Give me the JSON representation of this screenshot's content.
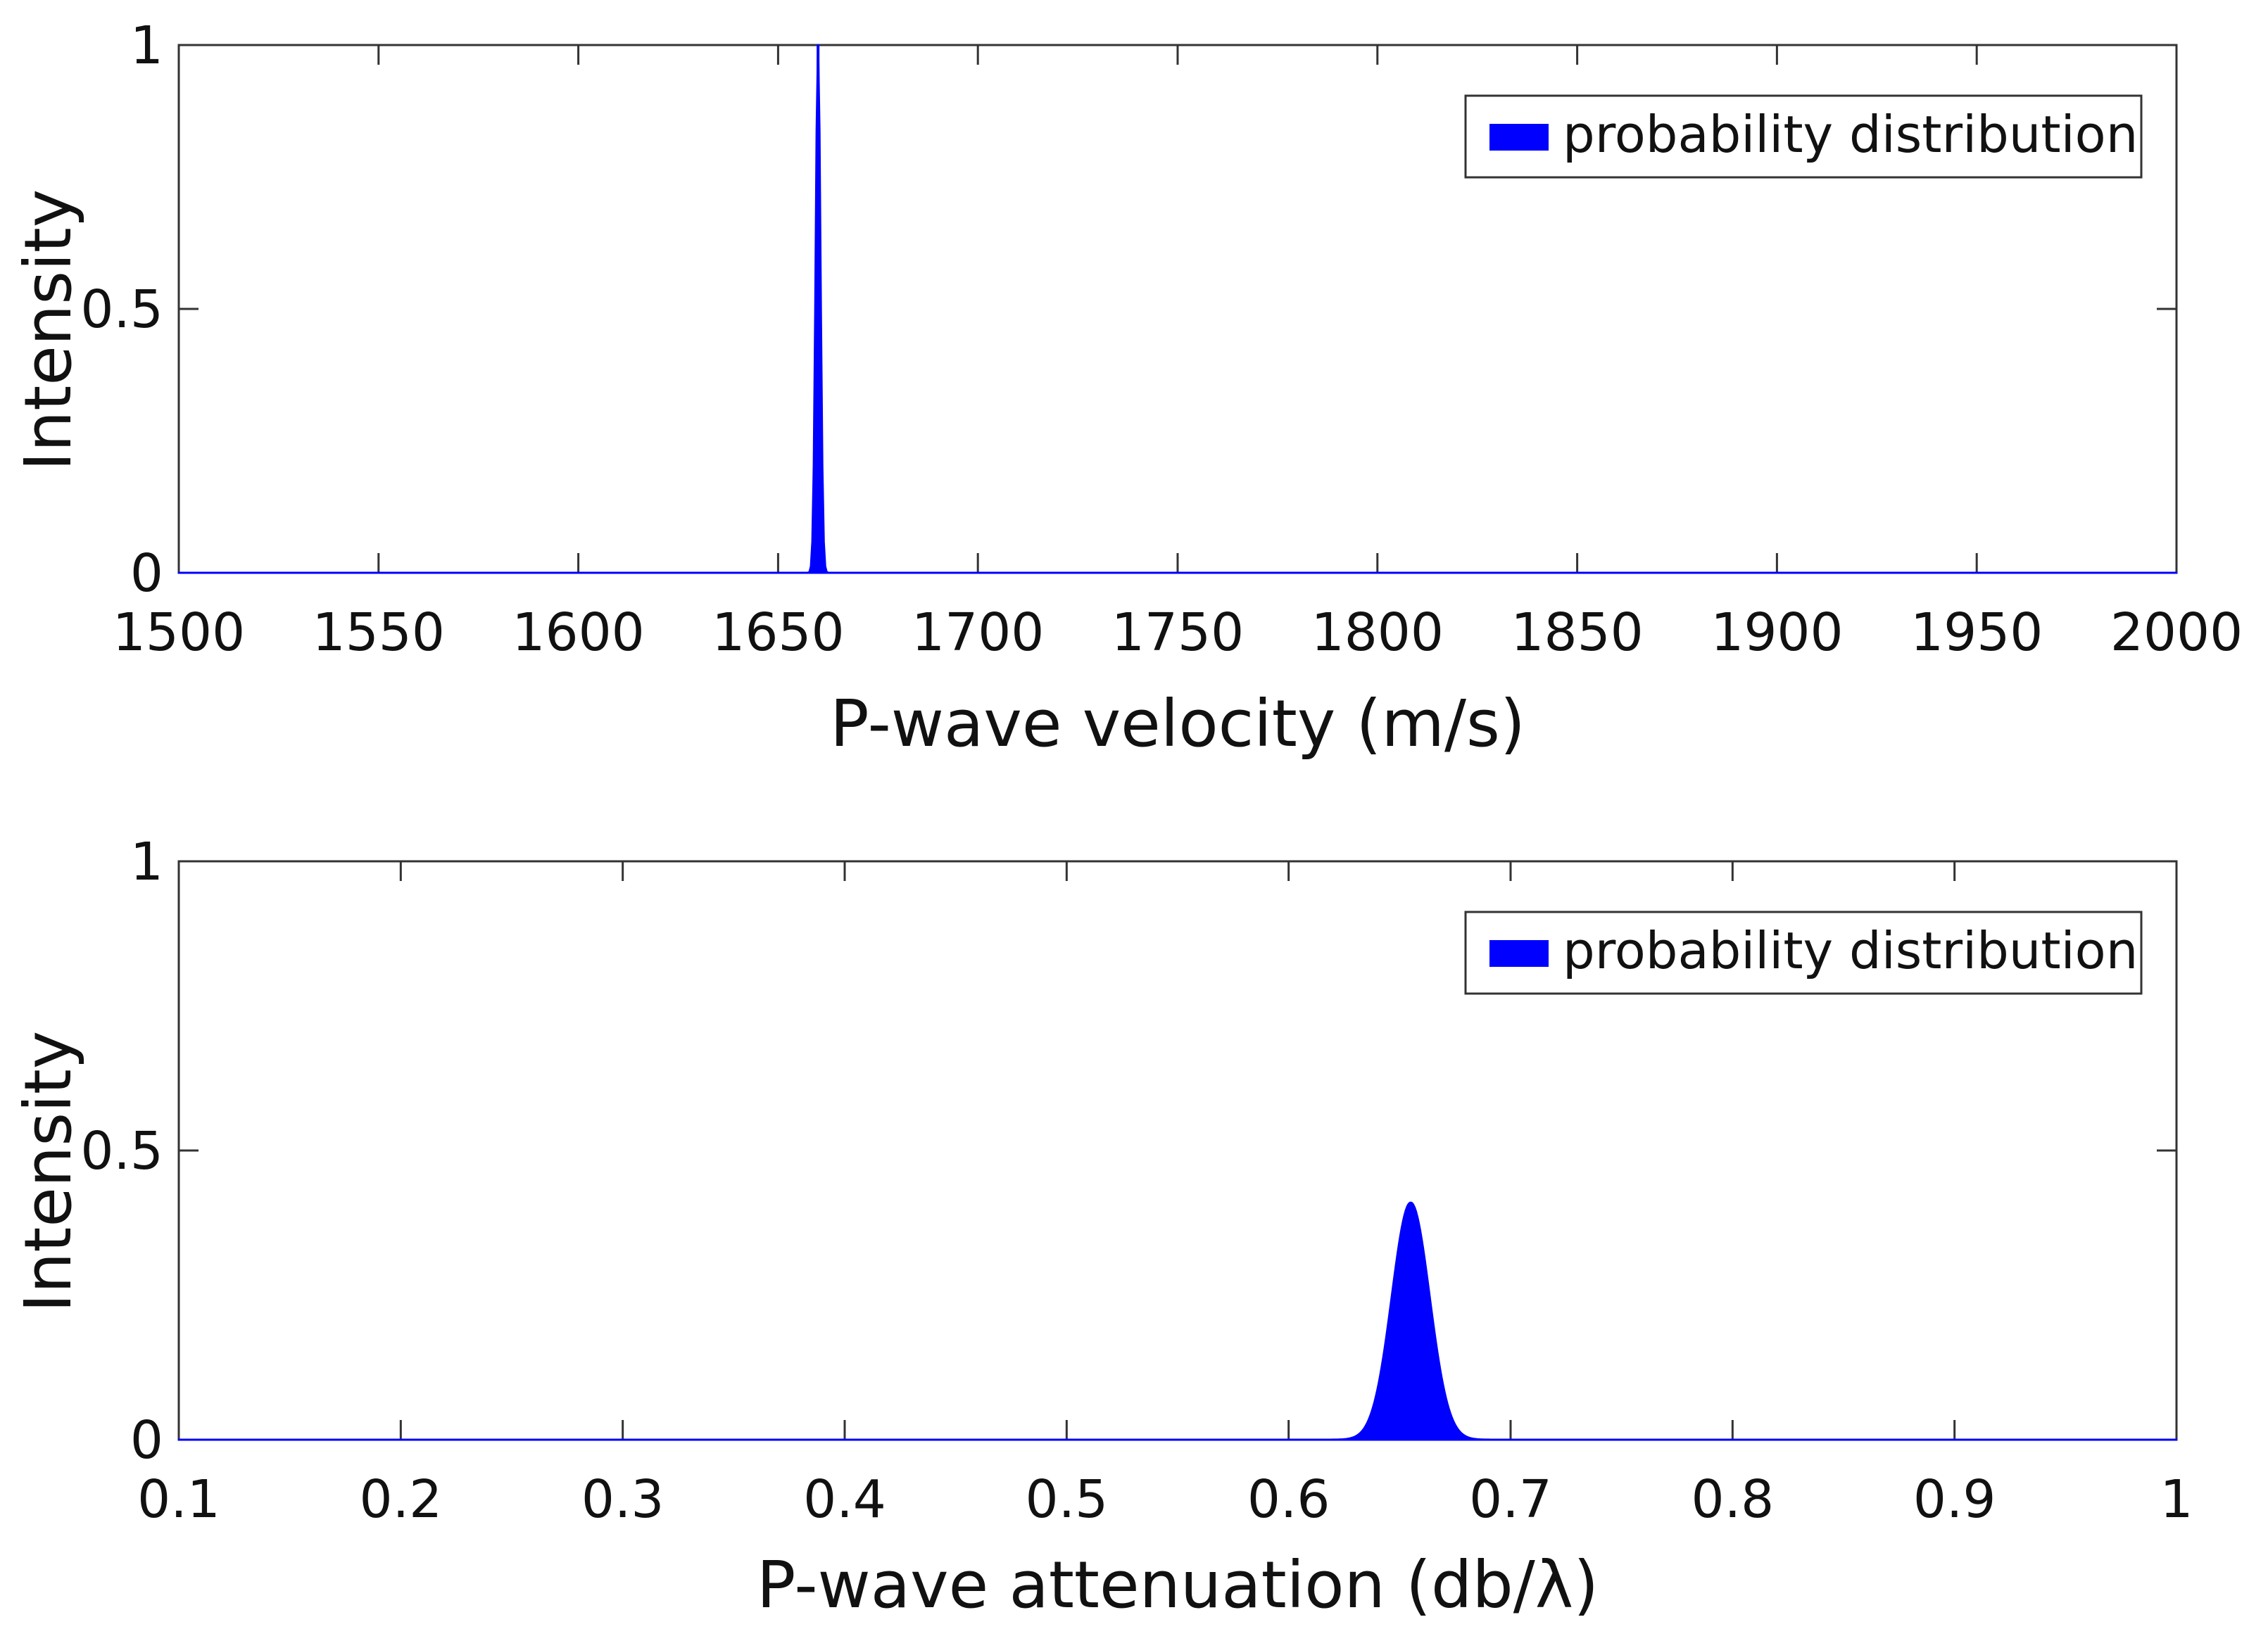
{
  "chart_data": [
    {
      "type": "area",
      "title": "",
      "xlabel": "P-wave velocity (m/s)",
      "ylabel": "Intensity",
      "xlim": [
        1500,
        2000
      ],
      "ylim": [
        0,
        1
      ],
      "x_ticks": [
        1500,
        1550,
        1600,
        1650,
        1700,
        1750,
        1800,
        1850,
        1900,
        1950,
        2000
      ],
      "x_tick_labels": [
        "1500",
        "1550",
        "1600",
        "1650",
        "1700",
        "1750",
        "1800",
        "1850",
        "1900",
        "1950",
        "2000"
      ],
      "y_ticks": [
        0,
        0.5,
        1
      ],
      "y_tick_labels": [
        "0",
        "0.5",
        "1"
      ],
      "grid": false,
      "legend": {
        "position": "top-right",
        "entries": [
          "probability distribution"
        ]
      },
      "series": [
        {
          "name": "probability distribution",
          "color": "#0000ff",
          "peak_x": 1660,
          "peak_y": 1.0,
          "sigma": 0.6
        }
      ]
    },
    {
      "type": "area",
      "title": "",
      "xlabel": "P-wave attenuation (db/λ)",
      "ylabel": "Intensity",
      "xlim": [
        0.1,
        1
      ],
      "ylim": [
        0,
        1
      ],
      "x_ticks": [
        0.1,
        0.2,
        0.3,
        0.4,
        0.5,
        0.6,
        0.7,
        0.8,
        0.9,
        1
      ],
      "x_tick_labels": [
        "0.1",
        "0.2",
        "0.3",
        "0.4",
        "0.5",
        "0.6",
        "0.7",
        "0.8",
        "0.9",
        "1"
      ],
      "y_ticks": [
        0,
        0.5,
        1
      ],
      "y_tick_labels": [
        "0",
        "0.5",
        "1"
      ],
      "grid": false,
      "legend": {
        "position": "top-right",
        "entries": [
          "probability distribution"
        ]
      },
      "series": [
        {
          "name": "probability distribution",
          "color": "#0000ff",
          "peak_x": 0.655,
          "peak_y": 0.41,
          "sigma": 0.0085
        }
      ]
    }
  ]
}
